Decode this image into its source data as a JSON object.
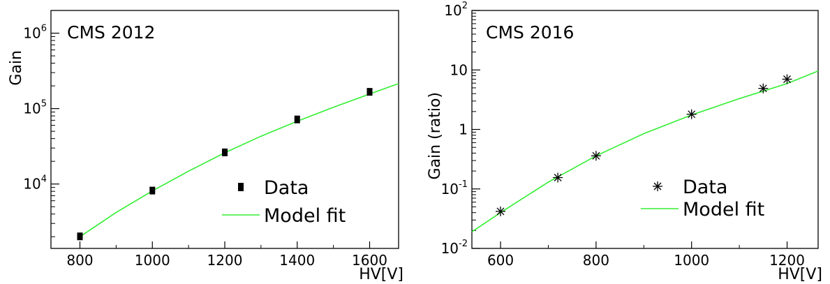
{
  "chart_data": [
    {
      "type": "scatter",
      "title": "CMS 2012",
      "xlabel": "HV[V]",
      "ylabel": "Gain",
      "xlim": [
        720,
        1680
      ],
      "ylim": [
        1400,
        2000000
      ],
      "yscale": "log",
      "grid": false,
      "legend_position": "bottom-right",
      "x_ticks": [
        800,
        1000,
        1200,
        1400,
        1600
      ],
      "y_ticks": [
        {
          "value": 10000,
          "base": "10",
          "exp": "4"
        },
        {
          "value": 100000,
          "base": "10",
          "exp": "5"
        },
        {
          "value": 1000000,
          "base": "10",
          "exp": "6"
        }
      ],
      "series": [
        {
          "name": "Data",
          "marker": "square",
          "color": "#000000",
          "x": [
            800,
            1000,
            1200,
            1400,
            1600
          ],
          "y": [
            2000,
            8100,
            26000,
            71000,
            165000
          ]
        },
        {
          "name": "Model fit",
          "style": "line",
          "color": "#33ee33",
          "x": [
            800,
            900,
            1000,
            1100,
            1200,
            1300,
            1400,
            1500,
            1600,
            1680
          ],
          "y": [
            2000,
            4200,
            8100,
            14800,
            26000,
            43000,
            68000,
            104000,
            156000,
            215000
          ]
        }
      ]
    },
    {
      "type": "scatter",
      "title": "CMS 2016",
      "xlabel": "HV[V]",
      "ylabel": "Gain (ratio)",
      "xlim": [
        540,
        1265
      ],
      "ylim": [
        0.01,
        100
      ],
      "yscale": "log",
      "grid": false,
      "legend_position": "bottom-right",
      "x_ticks": [
        600,
        800,
        1000,
        1200
      ],
      "y_ticks": [
        {
          "value": 0.01,
          "base": "10",
          "exp": "-2"
        },
        {
          "value": 0.1,
          "base": "10",
          "exp": "-1"
        },
        {
          "value": 1,
          "base": "1",
          "exp": ""
        },
        {
          "value": 10,
          "base": "10",
          "exp": ""
        },
        {
          "value": 100,
          "base": "10",
          "exp": "2"
        }
      ],
      "series": [
        {
          "name": "Data",
          "marker": "asterisk",
          "color": "#000000",
          "x": [
            600,
            720,
            800,
            1000,
            1150,
            1200
          ],
          "y": [
            0.042,
            0.155,
            0.36,
            1.8,
            4.9,
            7.0
          ]
        },
        {
          "name": "Model fit",
          "style": "line",
          "color": "#33ee33",
          "x": [
            540,
            600,
            700,
            800,
            900,
            1000,
            1100,
            1200,
            1265
          ],
          "y": [
            0.019,
            0.04,
            0.13,
            0.36,
            0.85,
            1.75,
            3.3,
            5.9,
            9.6
          ]
        }
      ]
    }
  ]
}
